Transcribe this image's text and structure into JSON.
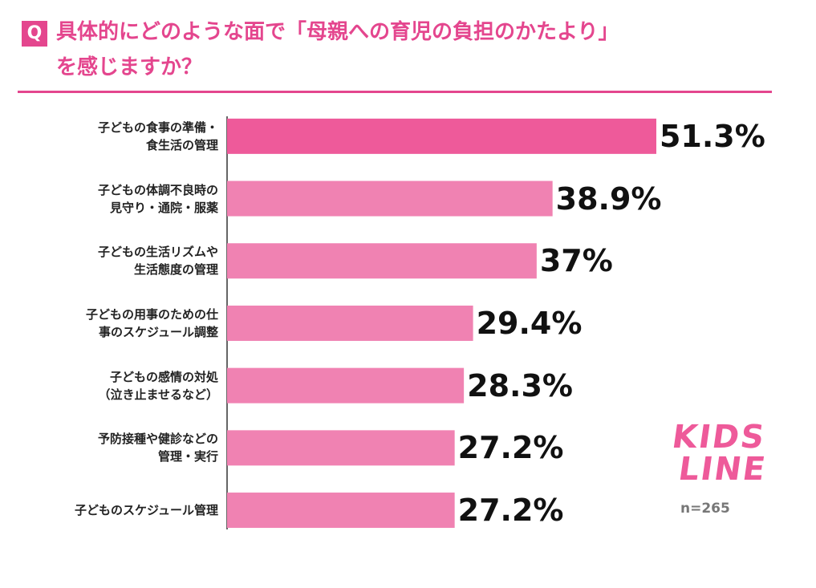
{
  "question_label": "Q",
  "chart_data": {
    "type": "bar",
    "orientation": "horizontal",
    "title": "具体的にどのような面で「母親への育児の負担のかたより」\nを感じますか？",
    "categories": [
      "子どもの食事の準備・\n食生活の管理",
      "子どもの体調不良時の\n見守り・通院・服薬",
      "子どもの生活リズムや\n生活態度の管理",
      "子どもの用事のための仕\n事のスケジュール調整",
      "子どもの感情の対処\n（泣き止ませるなど）",
      "予防接種や健診などの\n管理・実行",
      "子どものスケジュール管理"
    ],
    "values": [
      51.3,
      38.9,
      37,
      29.4,
      28.3,
      27.2,
      27.2
    ],
    "value_labels": [
      "51.3%",
      "38.9%",
      "37%",
      "29.4%",
      "28.3%",
      "27.2%",
      "27.2%"
    ],
    "colors": [
      "#ee5a9a",
      "#f082b2",
      "#f082b2",
      "#f082b2",
      "#f082b2",
      "#f082b2",
      "#f082b2"
    ],
    "xlim": [
      0,
      70
    ],
    "note": "n=265"
  },
  "logo": {
    "line1": "KIDS",
    "line2": "LINE"
  }
}
